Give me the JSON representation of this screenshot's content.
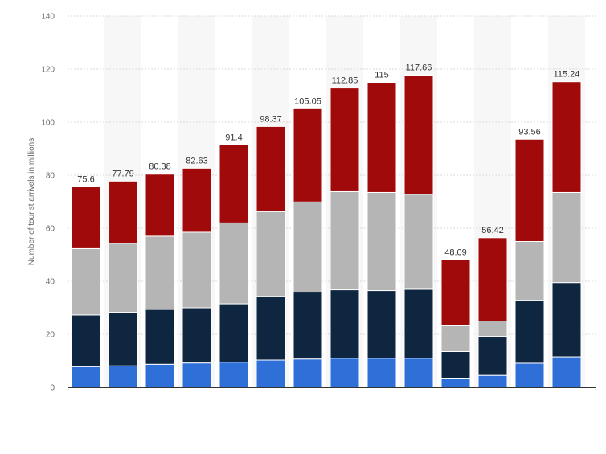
{
  "chart_data": {
    "type": "bar",
    "stacked": true,
    "title": "",
    "xlabel": "",
    "ylabel": "Number of tourist arrivals in millions",
    "ylim": [
      0,
      140
    ],
    "yticks": [
      0,
      20,
      40,
      60,
      80,
      100,
      120,
      140
    ],
    "grid": true,
    "legend": "none",
    "categories": [
      "",
      "",
      "",
      "",
      "",
      "",
      "",
      "",
      "",
      "",
      "",
      "",
      "",
      ""
    ],
    "totals": [
      75.6,
      77.79,
      80.38,
      82.63,
      91.4,
      98.37,
      105.05,
      112.85,
      115,
      117.66,
      48.09,
      56.42,
      93.56,
      115.24
    ],
    "series": [
      {
        "color": "#2f6fd8",
        "values": [
          7.8,
          8.1,
          8.7,
          9.2,
          9.5,
          10.3,
          10.7,
          11.0,
          11.0,
          11.0,
          3.2,
          4.5,
          9.1,
          11.5
        ]
      },
      {
        "color": "#0e2640",
        "values": [
          19.5,
          20.2,
          20.7,
          20.8,
          22.0,
          24.0,
          25.2,
          25.8,
          25.5,
          26.0,
          10.3,
          14.7,
          23.7,
          28.0
        ]
      },
      {
        "color": "#b5b5b5",
        "values": [
          25.0,
          26.0,
          27.6,
          28.5,
          30.5,
          32.0,
          34.0,
          37.0,
          37.0,
          35.8,
          9.7,
          5.8,
          22.2,
          34.0
        ]
      },
      {
        "color": "#a00a0a",
        "values": [
          23.3,
          23.49,
          23.38,
          24.13,
          29.4,
          32.07,
          35.15,
          39.05,
          41.5,
          44.86,
          24.89,
          31.42,
          38.56,
          41.74
        ]
      }
    ]
  }
}
